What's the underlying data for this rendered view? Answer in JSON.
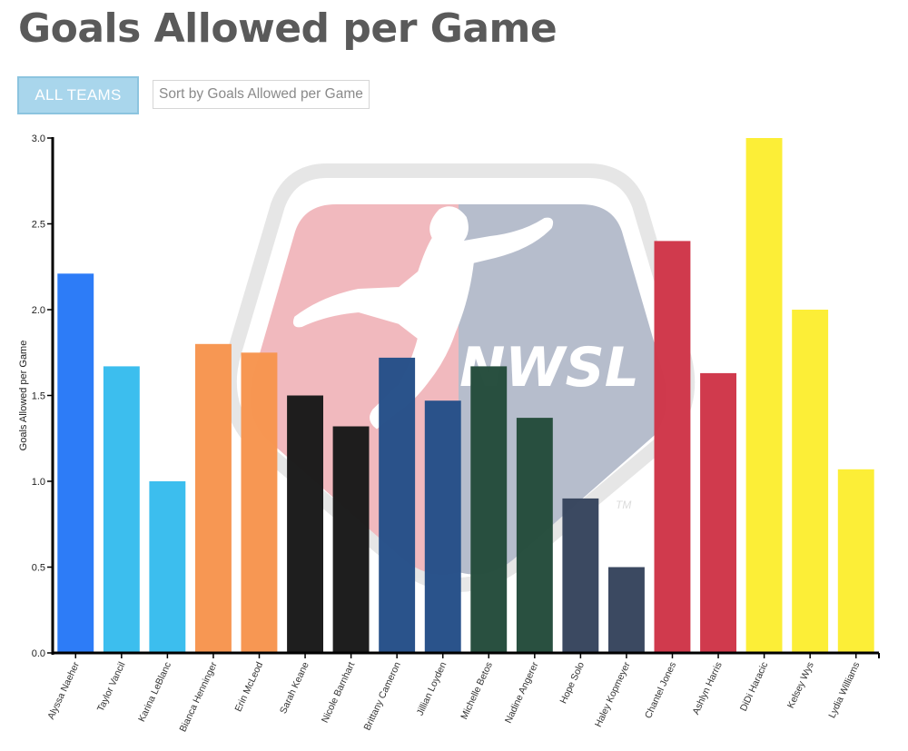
{
  "header": {
    "title": "Goals Allowed per Game"
  },
  "controls": {
    "team_filter_label": "ALL TEAMS",
    "sort_label": "Sort by Goals Allowed per Game"
  },
  "watermark": {
    "logo_text": "NWSL",
    "trademark": "TM"
  },
  "chart_data": {
    "type": "bar",
    "title": "Goals Allowed per Game",
    "xlabel": "",
    "ylabel": "Goals Allowed per Game",
    "ylim": [
      0,
      3.0
    ],
    "yticks": [
      "0.0",
      "0.5",
      "1.0",
      "1.5",
      "2.0",
      "2.5",
      "3.0"
    ],
    "grid": false,
    "legend": "none",
    "categories": [
      "Alyssa Naeher",
      "Taylor Vancil",
      "Karina LeBlanc",
      "Bianca Henninger",
      "Erin McLeod",
      "Sarah Keane",
      "Nicole Barnhart",
      "Brittany Cameron",
      "Jillian Loyden",
      "Michelle Betos",
      "Nadine Angerer",
      "Hope Solo",
      "Haley Kopmeyer",
      "Chantel Jones",
      "Ashlyn Harris",
      "DiDi Haracic",
      "Kelsey Wys",
      "Lydia Williams"
    ],
    "values": [
      2.21,
      1.67,
      1.0,
      1.8,
      1.75,
      1.5,
      1.32,
      1.72,
      1.47,
      1.67,
      1.37,
      0.9,
      0.5,
      2.4,
      1.63,
      3.0,
      2.0,
      1.07
    ],
    "colors": [
      "#2979f7",
      "#38bdee",
      "#38bdee",
      "#f79550",
      "#f79550",
      "#1a1a1a",
      "#1a1a1a",
      "#265089",
      "#265089",
      "#254c3c",
      "#254c3c",
      "#37455e",
      "#37455e",
      "#cf3649",
      "#cf3649",
      "#fcee33",
      "#fcee33",
      "#fcee33"
    ]
  }
}
